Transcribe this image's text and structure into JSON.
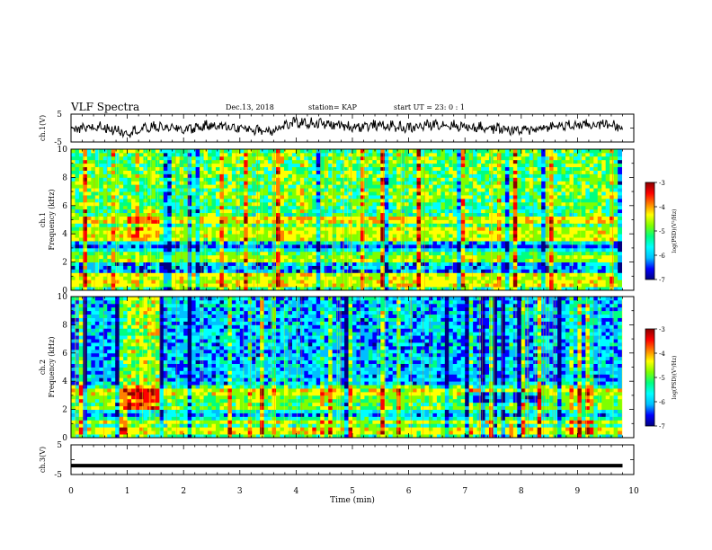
{
  "header": {
    "title": "VLF Spectra",
    "date": "Dec.13, 2018",
    "station": "station= KAP",
    "start_time": "start  UT =   23: 0  : 1"
  },
  "colorbar": {
    "label": "log(PSD)(V²/Hz)",
    "ticks": [
      "-3",
      "-4",
      "-5",
      "-6",
      "-7"
    ],
    "colormap": [
      "#000080",
      "#0000ff",
      "#00bfff",
      "#00ffff",
      "#00ff80",
      "#7fff00",
      "#ffff00",
      "#ff8000",
      "#ff0000",
      "#8b0000"
    ]
  },
  "chart_data": [
    {
      "type": "line",
      "panel": "ch1-waveform",
      "ylabel": "ch.1(V)",
      "ylim": [
        -5,
        5
      ],
      "y_ticks": [
        "5",
        "-5"
      ],
      "xlim": [
        0,
        10
      ],
      "description_series": "noisy waveform oscillating around roughly 0 V",
      "x": [
        0,
        0.5,
        1,
        1.5,
        2,
        2.5,
        3,
        3.5,
        4,
        4.5,
        5,
        5.5,
        6,
        6.5,
        7,
        7.5,
        8,
        8.5,
        9,
        9.5,
        9.8
      ],
      "y": [
        -1,
        0.5,
        -1.5,
        0.5,
        -0.5,
        1,
        0,
        -1,
        2,
        1.5,
        0.5,
        1,
        0,
        1.5,
        0.5,
        0,
        -1,
        0.5,
        1,
        1.5,
        0.5
      ]
    },
    {
      "type": "heatmap",
      "panel": "ch1-spectrogram",
      "ylabel": "ch.1\nFrequency (kHz)",
      "ylim": [
        0,
        10
      ],
      "y_ticks": [
        "0",
        "2",
        "4",
        "6",
        "8",
        "10"
      ],
      "xlim": [
        0,
        10
      ],
      "zlim": [
        -7,
        -3
      ]
    },
    {
      "type": "heatmap",
      "panel": "ch2-spectrogram",
      "ylabel": "ch.2\nFrequency (kHz)",
      "ylim": [
        0,
        10
      ],
      "y_ticks": [
        "0",
        "2",
        "4",
        "6",
        "8",
        "10"
      ],
      "xlim": [
        0,
        10
      ],
      "zlim": [
        -7,
        -3
      ]
    },
    {
      "type": "line",
      "panel": "ch3-waveform",
      "ylabel": "ch.3(V)",
      "ylim": [
        -5,
        5
      ],
      "y_ticks": [
        "5",
        "-5"
      ],
      "xlim": [
        0,
        10
      ],
      "xlabel": "Time (min)",
      "x_ticks": [
        "0",
        "1",
        "2",
        "3",
        "4",
        "5",
        "6",
        "7",
        "8",
        "9",
        "10"
      ],
      "x": [
        0,
        9.8
      ],
      "y": [
        -2,
        -2
      ]
    }
  ]
}
